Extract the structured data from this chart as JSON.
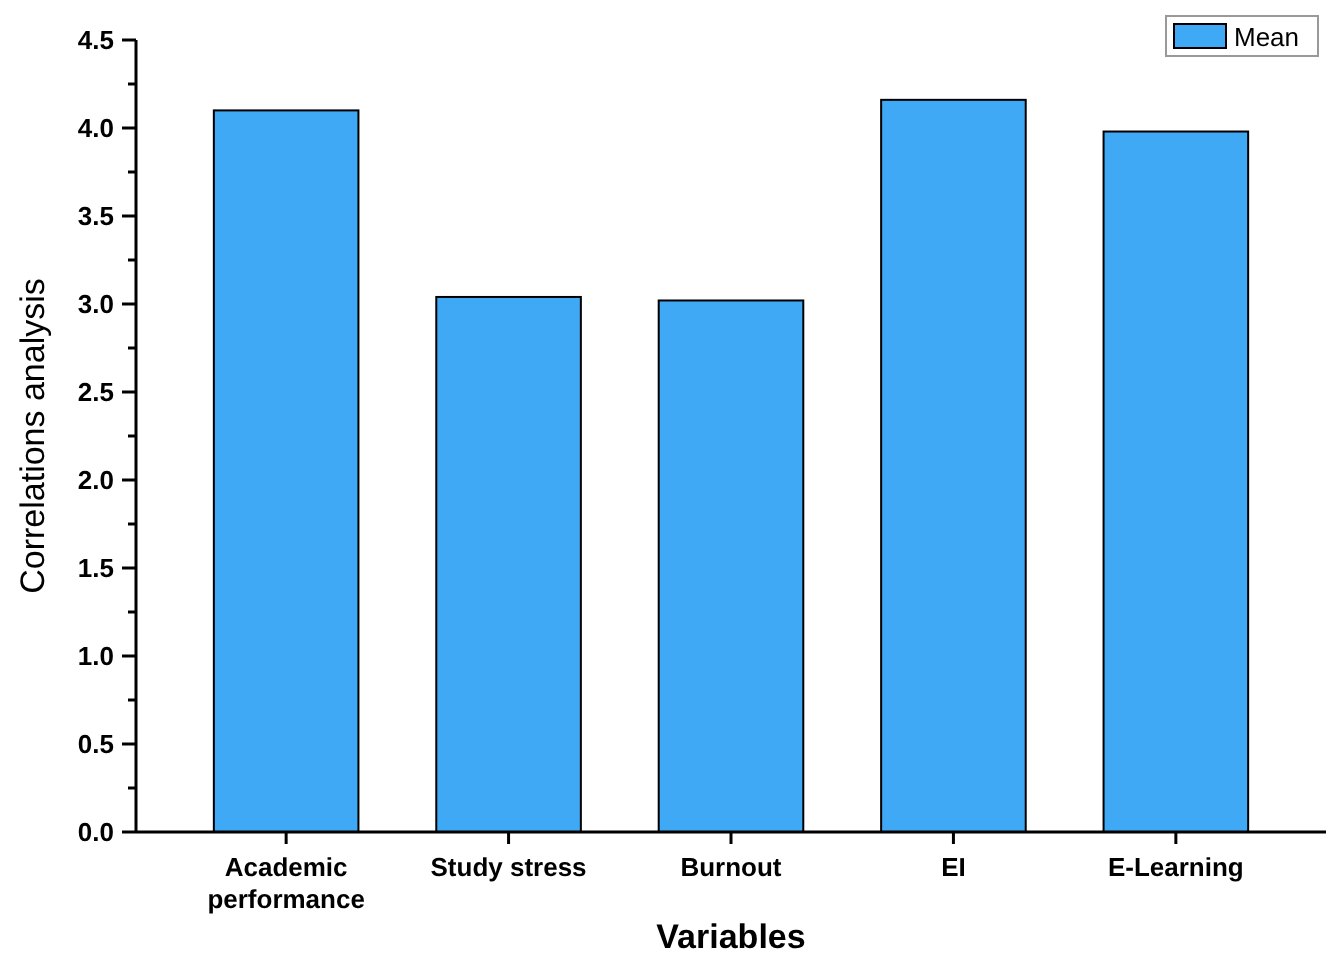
{
  "chart_data": {
    "type": "bar",
    "xlabel": "Variables",
    "ylabel": "Correlations analysis",
    "categories": [
      "Academic performance",
      "Study stress",
      "Burnout",
      "EI",
      "E-Learning"
    ],
    "series": [
      {
        "name": "Mean",
        "color": "#3fa9f5",
        "values": [
          4.1,
          3.04,
          3.02,
          4.16,
          3.98
        ]
      }
    ],
    "ylim": [
      0,
      4.5
    ],
    "yticks": [
      {
        "value": 0,
        "label": "0.0"
      },
      {
        "value": 0.25,
        "label": null
      },
      {
        "value": 0.5,
        "label": "0.5"
      },
      {
        "value": 0.75,
        "label": null
      },
      {
        "value": 1,
        "label": "1.0"
      },
      {
        "value": 1.25,
        "label": null
      },
      {
        "value": 1.5,
        "label": "1.5"
      },
      {
        "value": 1.75,
        "label": null
      },
      {
        "value": 2,
        "label": "2.0"
      },
      {
        "value": 2.25,
        "label": null
      },
      {
        "value": 2.5,
        "label": "2.5"
      },
      {
        "value": 2.75,
        "label": null
      },
      {
        "value": 3,
        "label": "3.0"
      },
      {
        "value": 3.25,
        "label": null
      },
      {
        "value": 3.5,
        "label": "3.5"
      },
      {
        "value": 3.75,
        "label": null
      },
      {
        "value": 4,
        "label": "4.0"
      },
      {
        "value": 4.25,
        "label": null
      },
      {
        "value": 4.5,
        "label": "4.5"
      }
    ],
    "legend": "top right"
  }
}
